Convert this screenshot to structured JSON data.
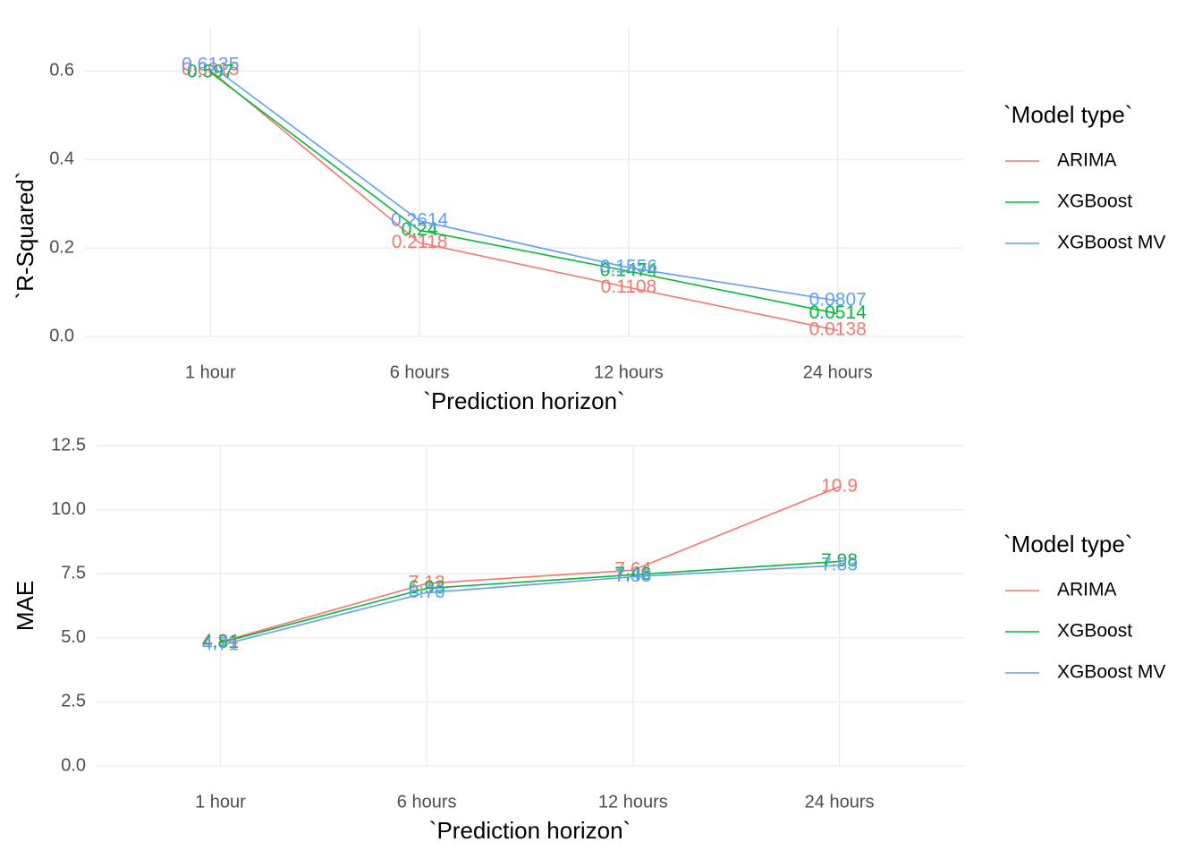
{
  "chart_data": [
    {
      "type": "line",
      "x_label": "`Prediction horizon`",
      "y_label": "`R-Squared`",
      "legend_title": "`Model type`",
      "categories": [
        "1 hour",
        "6 hours",
        "12 hours",
        "24 hours"
      ],
      "series": [
        {
          "name": "ARIMA",
          "color": "#F8766D",
          "values": [
            0.6015,
            0.2118,
            0.1108,
            0.0138
          ]
        },
        {
          "name": "XGBoost",
          "color": "#00BA38",
          "values": [
            0.597,
            0.24,
            0.1474,
            0.0514
          ]
        },
        {
          "name": "XGBoost MV",
          "color": "#619CFF",
          "values": [
            0.6135,
            0.2614,
            0.1556,
            0.0807
          ]
        }
      ],
      "ylim": [
        0,
        0.7
      ],
      "yticks": [
        {
          "value": 0,
          "label": "0.0"
        },
        0.2,
        0.4,
        0.6
      ],
      "grid": true
    },
    {
      "type": "line",
      "x_label": "`Prediction horizon`",
      "y_label": "MAE",
      "legend_title": "`Model type`",
      "categories": [
        "1 hour",
        "6 hours",
        "12 hours",
        "24 hours"
      ],
      "series": [
        {
          "name": "ARIMA",
          "color": "#F8766D",
          "values": [
            4.84,
            7.12,
            7.64,
            10.9
          ]
        },
        {
          "name": "XGBoost",
          "color": "#00BA38",
          "values": [
            4.81,
            6.93,
            7.46,
            7.98
          ]
        },
        {
          "name": "XGBoost MV",
          "color": "#619CFF",
          "values": [
            4.71,
            6.76,
            7.38,
            7.83
          ]
        }
      ],
      "ylim": [
        0,
        12.5
      ],
      "yticks": [
        {
          "value": 0,
          "label": "0.0"
        },
        2.5,
        {
          "value": 5,
          "label": "5.0"
        },
        7.5,
        {
          "value": 10,
          "label": "10.0"
        },
        12.5
      ],
      "grid": true
    }
  ]
}
